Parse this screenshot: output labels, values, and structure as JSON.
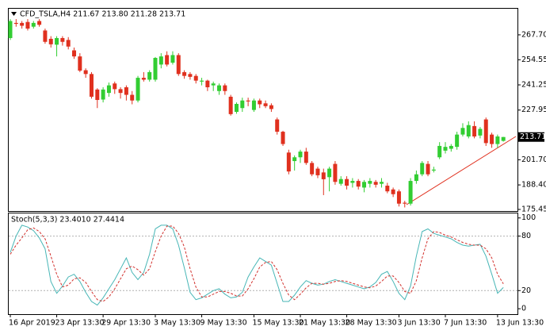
{
  "chart_data": [
    {
      "type": "candlestick",
      "title": "CFD_TSLA,H4  211.67 213.80 211.28 213.71",
      "up_color": "#32cd32",
      "down_color": "#e0301e",
      "ylim": [
        174.6,
        281.5
      ],
      "yticks": [
        {
          "value": 267.7,
          "label": "267.70"
        },
        254.55,
        241.25,
        227.95,
        {
          "value": 201.7,
          "label": "201.70"
        },
        {
          "value": 188.4,
          "label": "188.40"
        },
        175.45
      ],
      "last_price": 213.71,
      "categories": [
        "16 Apr 2019",
        null,
        null,
        null,
        null,
        null,
        null,
        null,
        "23 Apr 13:30",
        null,
        null,
        null,
        null,
        null,
        null,
        null,
        "29 Apr 13:30",
        null,
        null,
        null,
        null,
        null,
        null,
        null,
        null,
        "3 May 13:30",
        null,
        null,
        null,
        null,
        null,
        null,
        null,
        "9 May 13:30",
        null,
        null,
        null,
        null,
        null,
        null,
        null,
        null,
        "15 May 13:30",
        null,
        null,
        null,
        null,
        null,
        null,
        null,
        "21 May 13:30",
        null,
        null,
        null,
        null,
        null,
        null,
        null,
        "28 May 13:30",
        null,
        null,
        null,
        null,
        null,
        null,
        null,
        null,
        "3 Jun 13:30",
        null,
        null,
        null,
        null,
        null,
        null,
        null,
        "7 Jun 13:30",
        null,
        null,
        null,
        null,
        null,
        null,
        null,
        null,
        "13 Jun 13:30",
        null
      ],
      "open": [
        266,
        274,
        274,
        274.5,
        272,
        275,
        270,
        265.6,
        262.5,
        266,
        265,
        259.5,
        256.3,
        249,
        247,
        238.8,
        233.5,
        237,
        242,
        239,
        240,
        236,
        233,
        245,
        244,
        244,
        252,
        257,
        253,
        257,
        248,
        247,
        246,
        243,
        243.5,
        241,
        238,
        241,
        235,
        227,
        229,
        233,
        228,
        233,
        231.5,
        230.5,
        223,
        216.5,
        205.5,
        201,
        203,
        206,
        200,
        197,
        195,
        192.5,
        199.5,
        189,
        191.5,
        189.5,
        190.5,
        187,
        189,
        190,
        189,
        188,
        186,
        185,
        179,
        178.5,
        190.5,
        194,
        199.5,
        196,
        203,
        206.5,
        207.5,
        208.5,
        215,
        214,
        219.5,
        214.5,
        223,
        215,
        210,
        211.67
      ],
      "high": [
        276,
        276,
        275,
        276,
        275,
        276,
        271,
        267,
        267,
        267,
        266.5,
        261,
        258,
        250,
        248,
        239.5,
        240,
        242.5,
        243,
        240,
        241,
        238,
        246,
        248,
        249,
        256,
        258,
        259,
        259,
        258,
        249,
        248,
        247,
        245,
        244,
        243,
        242,
        242,
        236,
        232,
        234.5,
        234.5,
        234,
        234,
        233,
        231.5,
        224,
        217,
        207,
        204,
        207,
        208,
        201,
        198,
        197,
        198,
        201,
        193,
        193,
        192,
        191.5,
        191,
        192,
        191,
        192,
        189.5,
        187,
        186,
        180,
        192,
        196,
        201,
        201,
        198,
        211,
        211,
        210,
        216.5,
        221,
        222,
        222,
        219,
        224,
        216,
        215,
        213.8
      ],
      "low": [
        265,
        272,
        271,
        270,
        271,
        272,
        263,
        261,
        256.3,
        262,
        260,
        255,
        248,
        245,
        234,
        229,
        232,
        235,
        236.5,
        234,
        233,
        231,
        232,
        243,
        243,
        243,
        250,
        251,
        252,
        246,
        244.5,
        244,
        242,
        241,
        238,
        238,
        236,
        236,
        225,
        226,
        227,
        230,
        227,
        229,
        229,
        227,
        215,
        209,
        194,
        196,
        200,
        199,
        193,
        192,
        183,
        185,
        188.5,
        188,
        186,
        187,
        186,
        184.5,
        187,
        187,
        187,
        184,
        182,
        177,
        176.5,
        177.5,
        189,
        193,
        193,
        195,
        202,
        205,
        206,
        207,
        214,
        213,
        213,
        213,
        209,
        208,
        208,
        211.28
      ],
      "close": [
        275,
        273.5,
        272.5,
        271,
        274,
        273,
        264,
        262.7,
        266,
        264,
        261.5,
        256.3,
        248.8,
        247,
        235,
        233.3,
        238.8,
        241,
        239,
        237,
        236,
        233,
        245,
        244,
        248,
        255.5,
        256.3,
        252,
        257,
        247,
        246,
        245.5,
        243.5,
        243.5,
        240,
        242,
        241,
        238,
        225.8,
        231.2,
        233,
        232.5,
        233,
        231,
        230,
        228.5,
        216.5,
        210,
        195.5,
        203,
        206,
        200,
        194,
        193.5,
        191.4,
        197,
        190,
        191.5,
        188,
        190.5,
        187.5,
        190,
        190.5,
        188.5,
        190,
        185,
        183.5,
        178.5,
        178.5,
        190.5,
        194,
        200,
        194,
        196.5,
        209,
        208.5,
        209,
        215,
        218.5,
        220,
        214,
        218,
        210.5,
        210,
        214,
        213.71
      ]
    },
    {
      "type": "line",
      "title": "Stoch(5,3,3) 23.4010 27.4414",
      "ylim": [
        -6,
        105
      ],
      "yticks": [
        100,
        80,
        20,
        0
      ],
      "levels": [
        80,
        20
      ],
      "series": [
        {
          "color": "#47b6b6",
          "values": [
            62,
            80,
            92,
            90,
            86,
            78,
            66,
            30,
            17,
            25,
            35,
            38,
            30,
            18,
            8,
            4,
            12,
            22,
            32,
            44,
            56,
            40,
            32,
            40,
            60,
            88,
            92,
            92,
            88,
            70,
            45,
            18,
            10,
            12,
            16,
            20,
            22,
            16,
            12,
            13,
            18,
            35,
            46,
            56,
            52,
            48,
            28,
            8,
            8,
            15,
            24,
            31,
            28,
            26,
            27,
            30,
            32,
            30,
            28,
            26,
            24,
            22,
            24,
            29,
            38,
            41,
            30,
            17,
            10,
            25,
            58,
            85,
            88,
            83,
            81,
            79,
            77,
            73,
            70,
            69,
            70,
            71,
            58,
            38,
            17,
            23.401
          ]
        },
        {
          "color": "#d2312d",
          "dash": true,
          "values": [
            60,
            70,
            78,
            87,
            89,
            85,
            77,
            58,
            38,
            24,
            26,
            33,
            34,
            29,
            19,
            10,
            8,
            13,
            22,
            33,
            44,
            47,
            43,
            37,
            44,
            63,
            80,
            91,
            91,
            83,
            68,
            44,
            24,
            13,
            13,
            16,
            19,
            19,
            17,
            14,
            14,
            22,
            33,
            46,
            51,
            52,
            43,
            28,
            15,
            10,
            16,
            23,
            28,
            28,
            27,
            28,
            30,
            31,
            30,
            28,
            26,
            24,
            23,
            25,
            30,
            36,
            36,
            29,
            19,
            17,
            31,
            56,
            77,
            85,
            84,
            81,
            79,
            76,
            73,
            71,
            70,
            70,
            66,
            56,
            38,
            27.4414
          ]
        }
      ]
    }
  ]
}
